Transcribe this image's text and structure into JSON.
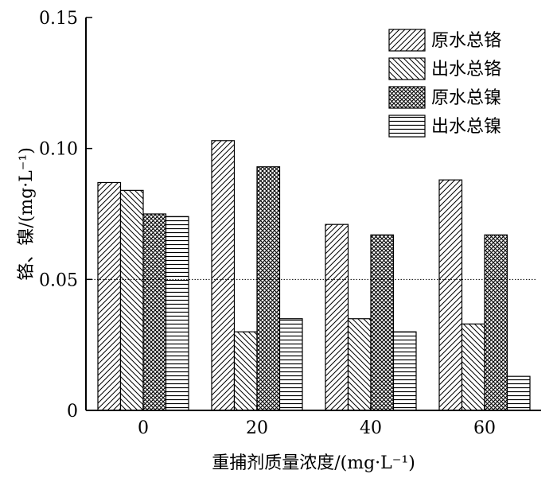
{
  "chart_data": {
    "type": "bar",
    "categories": [
      "0",
      "20",
      "40",
      "60"
    ],
    "series": [
      {
        "name": "原水总铬",
        "values": [
          0.087,
          0.103,
          0.071,
          0.088
        ],
        "pattern": "diag-up"
      },
      {
        "name": "出水总铬",
        "values": [
          0.084,
          0.03,
          0.035,
          0.033
        ],
        "pattern": "diag-down"
      },
      {
        "name": "原水总镍",
        "values": [
          0.075,
          0.093,
          0.067,
          0.067
        ],
        "pattern": "crosshatch"
      },
      {
        "name": "出水总镍",
        "values": [
          0.074,
          0.035,
          0.03,
          0.013
        ],
        "pattern": "horizontal"
      }
    ],
    "ylim": [
      0,
      0.15
    ],
    "yticks": [
      "0",
      "0.05",
      "0.10",
      "0.15"
    ],
    "ytick_values": [
      0,
      0.05,
      0.1,
      0.15
    ],
    "ylabel": "铬、镍/(mg·L⁻¹)",
    "xlabel": "重捕剂质量浓度/(mg·L⁻¹)",
    "reference_line": 0.05,
    "grid": false,
    "legend_position": "top-right"
  }
}
